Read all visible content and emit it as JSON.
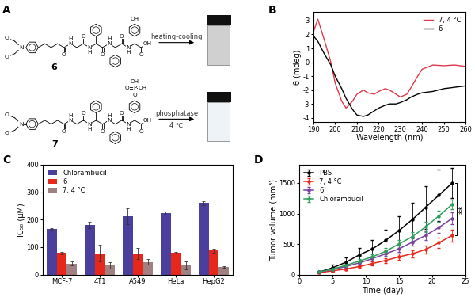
{
  "panel_labels": [
    "A",
    "B",
    "C",
    "D"
  ],
  "scheme": {
    "compounds": [
      {
        "label": "6",
        "atoms": [
          "Cl",
          "Cl",
          "N",
          "O",
          "N",
          "H",
          "O",
          "N",
          "H",
          "O",
          "N",
          "H",
          "O",
          "N",
          "H",
          "O",
          "OH",
          "OH"
        ],
        "arrow_text": "heating-cooling"
      },
      {
        "label": "7",
        "atoms": [
          "Cl",
          "Cl",
          "N",
          "O",
          "N",
          "H",
          "O",
          "N",
          "H",
          "O",
          "N",
          "H",
          "O",
          "N",
          "H",
          "O",
          "OH",
          "O",
          "P",
          "O",
          "OH",
          "OH"
        ],
        "arrow_text": "phosphatase",
        "condition": "4 ℃"
      }
    ]
  },
  "chart_data": [
    {
      "type": "line",
      "x": [
        190,
        192,
        195,
        198,
        200,
        203,
        205,
        208,
        210,
        213,
        215,
        218,
        220,
        223,
        225,
        228,
        230,
        233,
        235,
        238,
        240,
        245,
        250,
        255,
        260
      ],
      "series": [
        {
          "name": "7, 4 °C",
          "color": "#e0384a",
          "values": [
            2.2,
            3.1,
            1.6,
            0.0,
            -1.5,
            -2.8,
            -3.3,
            -2.8,
            -2.3,
            -2.0,
            -2.2,
            -2.3,
            -2.1,
            -1.9,
            -2.0,
            -2.3,
            -2.5,
            -2.3,
            -1.8,
            -1.0,
            -0.5,
            -0.2,
            -0.25,
            -0.2,
            -0.3
          ]
        },
        {
          "name": "6",
          "color": "#000000",
          "values": [
            1.9,
            1.5,
            0.6,
            -0.2,
            -1.0,
            -1.9,
            -2.6,
            -3.4,
            -3.8,
            -3.9,
            -3.8,
            -3.5,
            -3.3,
            -3.1,
            -3.0,
            -3.0,
            -2.9,
            -2.7,
            -2.5,
            -2.3,
            -2.2,
            -2.1,
            -1.9,
            -1.8,
            -1.7
          ]
        }
      ],
      "x_label": "Wavelength (nm)",
      "y_label": "θ (mdeg)",
      "xlim": [
        190,
        260
      ],
      "xticks": [
        190,
        200,
        210,
        220,
        230,
        240,
        250,
        260
      ],
      "ylim": [
        -4.3,
        3.6
      ],
      "yticks": [
        -4,
        -3,
        -2,
        -1,
        0,
        1,
        2,
        3
      ],
      "reference_line": 0,
      "legend": "upper right"
    },
    {
      "type": "bar",
      "categories": [
        "MCF-7",
        "4T1",
        "A549",
        "HeLa",
        "HepG2"
      ],
      "series": [
        {
          "name": "Chlorambucil",
          "color": "#4b3f9e",
          "values": [
            167,
            180,
            212,
            224,
            260
          ],
          "errors": [
            3,
            12,
            30,
            5,
            8
          ]
        },
        {
          "name": "6",
          "color": "#e8271b",
          "values": [
            78,
            77,
            77,
            79,
            87
          ],
          "errors": [
            5,
            30,
            20,
            3,
            8
          ]
        },
        {
          "name": "7, 4 °C",
          "color": "#a08080",
          "values": [
            40,
            33,
            45,
            33,
            28
          ],
          "errors": [
            8,
            12,
            10,
            15,
            3
          ]
        }
      ],
      "y_label": "IC₅₀ (μM)",
      "ylim": [
        0,
        400
      ],
      "yticks": [
        0,
        100,
        200,
        300,
        400
      ],
      "legend": "upper left"
    },
    {
      "type": "line",
      "x": [
        3,
        5,
        7,
        9,
        11,
        13,
        15,
        17,
        19,
        21,
        23
      ],
      "series": [
        {
          "name": "PBS",
          "color": "#000000",
          "marker": "o",
          "values": [
            40,
            110,
            200,
            320,
            420,
            560,
            720,
            900,
            1100,
            1300,
            1500
          ],
          "errors": [
            20,
            50,
            80,
            120,
            150,
            180,
            230,
            280,
            350,
            420,
            250
          ]
        },
        {
          "name": "7, 4 °C",
          "color": "#e8271b",
          "marker": "o",
          "values": [
            30,
            60,
            90,
            130,
            180,
            230,
            290,
            340,
            410,
            520,
            640
          ],
          "errors": [
            10,
            15,
            20,
            25,
            30,
            40,
            50,
            60,
            70,
            80,
            100
          ]
        },
        {
          "name": "6",
          "color": "#7b3fa0",
          "marker": "o",
          "values": [
            40,
            80,
            130,
            190,
            260,
            340,
            420,
            530,
            640,
            770,
            920
          ],
          "errors": [
            10,
            15,
            20,
            25,
            30,
            40,
            50,
            60,
            70,
            90,
            100
          ]
        },
        {
          "name": "Chlorambucil",
          "color": "#2e9e5a",
          "marker": "o",
          "values": [
            40,
            90,
            150,
            220,
            290,
            380,
            500,
            620,
            780,
            960,
            1150
          ],
          "errors": [
            10,
            20,
            25,
            30,
            40,
            50,
            60,
            70,
            80,
            90,
            80
          ]
        }
      ],
      "x_label": "Time (day)",
      "y_label": "Tumor volume (mm³)",
      "xlim": [
        0,
        25
      ],
      "xticks": [
        0,
        5,
        10,
        15,
        20,
        25
      ],
      "ylim": [
        0,
        1800
      ],
      "yticks": [
        0,
        500,
        1000,
        1500
      ],
      "legend": "upper left",
      "annotations": [
        {
          "text": "**",
          "between": [
            "PBS",
            "7, 4 °C"
          ]
        }
      ]
    }
  ]
}
